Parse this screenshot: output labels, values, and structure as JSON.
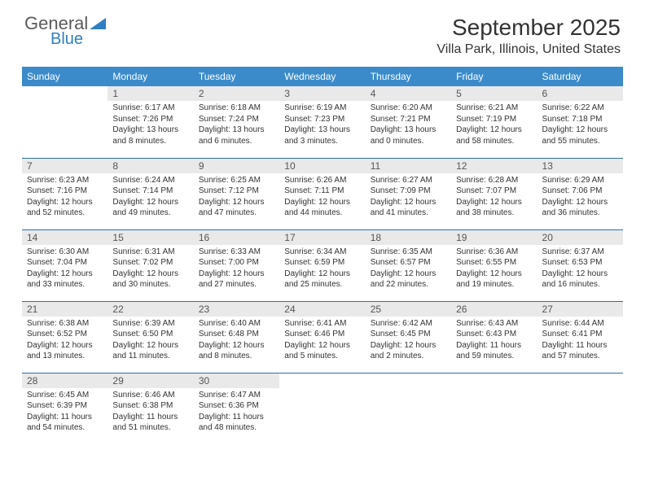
{
  "brand": {
    "line1": "General",
    "line2": "Blue"
  },
  "title": "September 2025",
  "location": "Villa Park, Illinois, United States",
  "colors": {
    "header_bg": "#3b8bca",
    "header_text": "#ffffff",
    "dayhead_bg": "#e9e9e9",
    "dayhead_text": "#555555",
    "cell_border": "#2f6fa8",
    "body_text": "#333333",
    "logo_gray": "#5b5b5b",
    "logo_blue": "#2f7fc2"
  },
  "weekdays": [
    "Sunday",
    "Monday",
    "Tuesday",
    "Wednesday",
    "Thursday",
    "Friday",
    "Saturday"
  ],
  "weeks": [
    [
      null,
      {
        "n": "1",
        "sr": "6:17 AM",
        "ss": "7:26 PM",
        "dl": "13 hours and 8 minutes."
      },
      {
        "n": "2",
        "sr": "6:18 AM",
        "ss": "7:24 PM",
        "dl": "13 hours and 6 minutes."
      },
      {
        "n": "3",
        "sr": "6:19 AM",
        "ss": "7:23 PM",
        "dl": "13 hours and 3 minutes."
      },
      {
        "n": "4",
        "sr": "6:20 AM",
        "ss": "7:21 PM",
        "dl": "13 hours and 0 minutes."
      },
      {
        "n": "5",
        "sr": "6:21 AM",
        "ss": "7:19 PM",
        "dl": "12 hours and 58 minutes."
      },
      {
        "n": "6",
        "sr": "6:22 AM",
        "ss": "7:18 PM",
        "dl": "12 hours and 55 minutes."
      }
    ],
    [
      {
        "n": "7",
        "sr": "6:23 AM",
        "ss": "7:16 PM",
        "dl": "12 hours and 52 minutes."
      },
      {
        "n": "8",
        "sr": "6:24 AM",
        "ss": "7:14 PM",
        "dl": "12 hours and 49 minutes."
      },
      {
        "n": "9",
        "sr": "6:25 AM",
        "ss": "7:12 PM",
        "dl": "12 hours and 47 minutes."
      },
      {
        "n": "10",
        "sr": "6:26 AM",
        "ss": "7:11 PM",
        "dl": "12 hours and 44 minutes."
      },
      {
        "n": "11",
        "sr": "6:27 AM",
        "ss": "7:09 PM",
        "dl": "12 hours and 41 minutes."
      },
      {
        "n": "12",
        "sr": "6:28 AM",
        "ss": "7:07 PM",
        "dl": "12 hours and 38 minutes."
      },
      {
        "n": "13",
        "sr": "6:29 AM",
        "ss": "7:06 PM",
        "dl": "12 hours and 36 minutes."
      }
    ],
    [
      {
        "n": "14",
        "sr": "6:30 AM",
        "ss": "7:04 PM",
        "dl": "12 hours and 33 minutes."
      },
      {
        "n": "15",
        "sr": "6:31 AM",
        "ss": "7:02 PM",
        "dl": "12 hours and 30 minutes."
      },
      {
        "n": "16",
        "sr": "6:33 AM",
        "ss": "7:00 PM",
        "dl": "12 hours and 27 minutes."
      },
      {
        "n": "17",
        "sr": "6:34 AM",
        "ss": "6:59 PM",
        "dl": "12 hours and 25 minutes."
      },
      {
        "n": "18",
        "sr": "6:35 AM",
        "ss": "6:57 PM",
        "dl": "12 hours and 22 minutes."
      },
      {
        "n": "19",
        "sr": "6:36 AM",
        "ss": "6:55 PM",
        "dl": "12 hours and 19 minutes."
      },
      {
        "n": "20",
        "sr": "6:37 AM",
        "ss": "6:53 PM",
        "dl": "12 hours and 16 minutes."
      }
    ],
    [
      {
        "n": "21",
        "sr": "6:38 AM",
        "ss": "6:52 PM",
        "dl": "12 hours and 13 minutes."
      },
      {
        "n": "22",
        "sr": "6:39 AM",
        "ss": "6:50 PM",
        "dl": "12 hours and 11 minutes."
      },
      {
        "n": "23",
        "sr": "6:40 AM",
        "ss": "6:48 PM",
        "dl": "12 hours and 8 minutes."
      },
      {
        "n": "24",
        "sr": "6:41 AM",
        "ss": "6:46 PM",
        "dl": "12 hours and 5 minutes."
      },
      {
        "n": "25",
        "sr": "6:42 AM",
        "ss": "6:45 PM",
        "dl": "12 hours and 2 minutes."
      },
      {
        "n": "26",
        "sr": "6:43 AM",
        "ss": "6:43 PM",
        "dl": "11 hours and 59 minutes."
      },
      {
        "n": "27",
        "sr": "6:44 AM",
        "ss": "6:41 PM",
        "dl": "11 hours and 57 minutes."
      }
    ],
    [
      {
        "n": "28",
        "sr": "6:45 AM",
        "ss": "6:39 PM",
        "dl": "11 hours and 54 minutes."
      },
      {
        "n": "29",
        "sr": "6:46 AM",
        "ss": "6:38 PM",
        "dl": "11 hours and 51 minutes."
      },
      {
        "n": "30",
        "sr": "6:47 AM",
        "ss": "6:36 PM",
        "dl": "11 hours and 48 minutes."
      },
      null,
      null,
      null,
      null
    ]
  ],
  "labels": {
    "sunrise": "Sunrise:",
    "sunset": "Sunset:",
    "daylight": "Daylight:"
  }
}
